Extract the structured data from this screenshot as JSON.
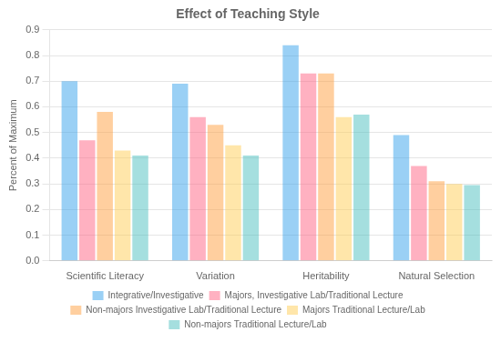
{
  "chart_data": {
    "type": "bar",
    "title": "Effect of Teaching Style",
    "ylabel": "Percent of Maximum",
    "categories": [
      "Scientific Literacy",
      "Variation",
      "Heritability",
      "Natural Selection"
    ],
    "series": [
      {
        "name": "Integrative/Investigative",
        "values": [
          0.7,
          0.69,
          0.84,
          0.49
        ]
      },
      {
        "name": "Majors, Investigative Lab/Traditional Lecture",
        "values": [
          0.47,
          0.56,
          0.73,
          0.37
        ]
      },
      {
        "name": "Non-majors Investigative Lab/Traditional Lecture",
        "values": [
          0.58,
          0.53,
          0.73,
          0.31
        ]
      },
      {
        "name": "Majors Traditional Lecture/Lab",
        "values": [
          0.43,
          0.45,
          0.56,
          0.3
        ]
      },
      {
        "name": "Non-majors Traditional Lecture/Lab",
        "values": [
          0.41,
          0.41,
          0.57,
          0.295
        ]
      }
    ],
    "ylim": [
      0,
      0.9
    ],
    "yticks": [
      {
        "value": 0,
        "label": "0.0"
      },
      0.1,
      0.2,
      0.3,
      0.4,
      0.5,
      0.6,
      0.7,
      0.8,
      0.9
    ],
    "grid": true,
    "legend": "bottom"
  }
}
